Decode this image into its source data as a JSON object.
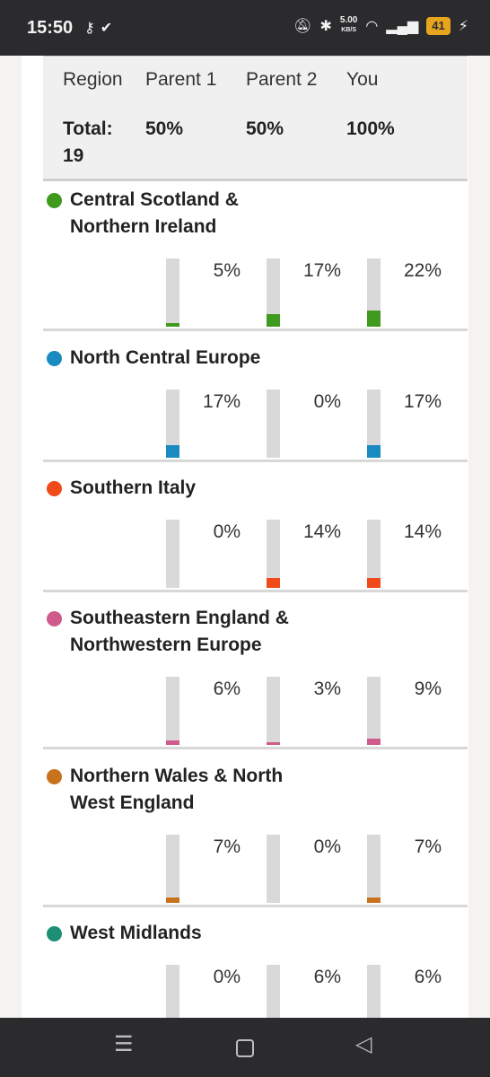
{
  "status_bar": {
    "time": "15:50",
    "left_icons": [
      "key-icon",
      "shield-check-icon"
    ],
    "net_speed_value": "5.00",
    "net_speed_unit": "KB/S",
    "battery": "41",
    "right_icons": [
      "bell-off-icon",
      "bluetooth-icon",
      "wifi-icon",
      "signal-icon",
      "charging-icon"
    ]
  },
  "table": {
    "headers": [
      "Region",
      "Parent 1",
      "Parent 2",
      "You"
    ],
    "totals": [
      "Total: 19",
      "50%",
      "50%",
      "100%"
    ]
  },
  "regions": [
    {
      "name": "Central Scotland & Northern Ireland",
      "color": "#3f9a1e",
      "parent1": "5%",
      "parent2": "17%",
      "you": "22%",
      "p1": 5,
      "p2": 17,
      "y": 22
    },
    {
      "name": "North Central Europe",
      "color": "#1a8bc0",
      "parent1": "17%",
      "parent2": "0%",
      "you": "17%",
      "p1": 17,
      "p2": 0,
      "y": 17
    },
    {
      "name": "Southern Italy",
      "color": "#f04a1a",
      "parent1": "0%",
      "parent2": "14%",
      "you": "14%",
      "p1": 0,
      "p2": 14,
      "y": 14
    },
    {
      "name": "Southeastern England & Northwestern Europe",
      "color": "#cf5a8c",
      "parent1": "6%",
      "parent2": "3%",
      "you": "9%",
      "p1": 6,
      "p2": 3,
      "y": 9
    },
    {
      "name": "Northern Wales & North West England",
      "color": "#c8721c",
      "parent1": "7%",
      "parent2": "0%",
      "you": "7%",
      "p1": 7,
      "p2": 0,
      "y": 7
    },
    {
      "name": "West Midlands",
      "color": "#1c8f74",
      "parent1": "0%",
      "parent2": "6%",
      "you": "6%",
      "p1": 0,
      "p2": 6,
      "y": 6
    }
  ],
  "nav_bar": {
    "icons": [
      "menu-icon",
      "home-icon",
      "back-icon"
    ]
  }
}
